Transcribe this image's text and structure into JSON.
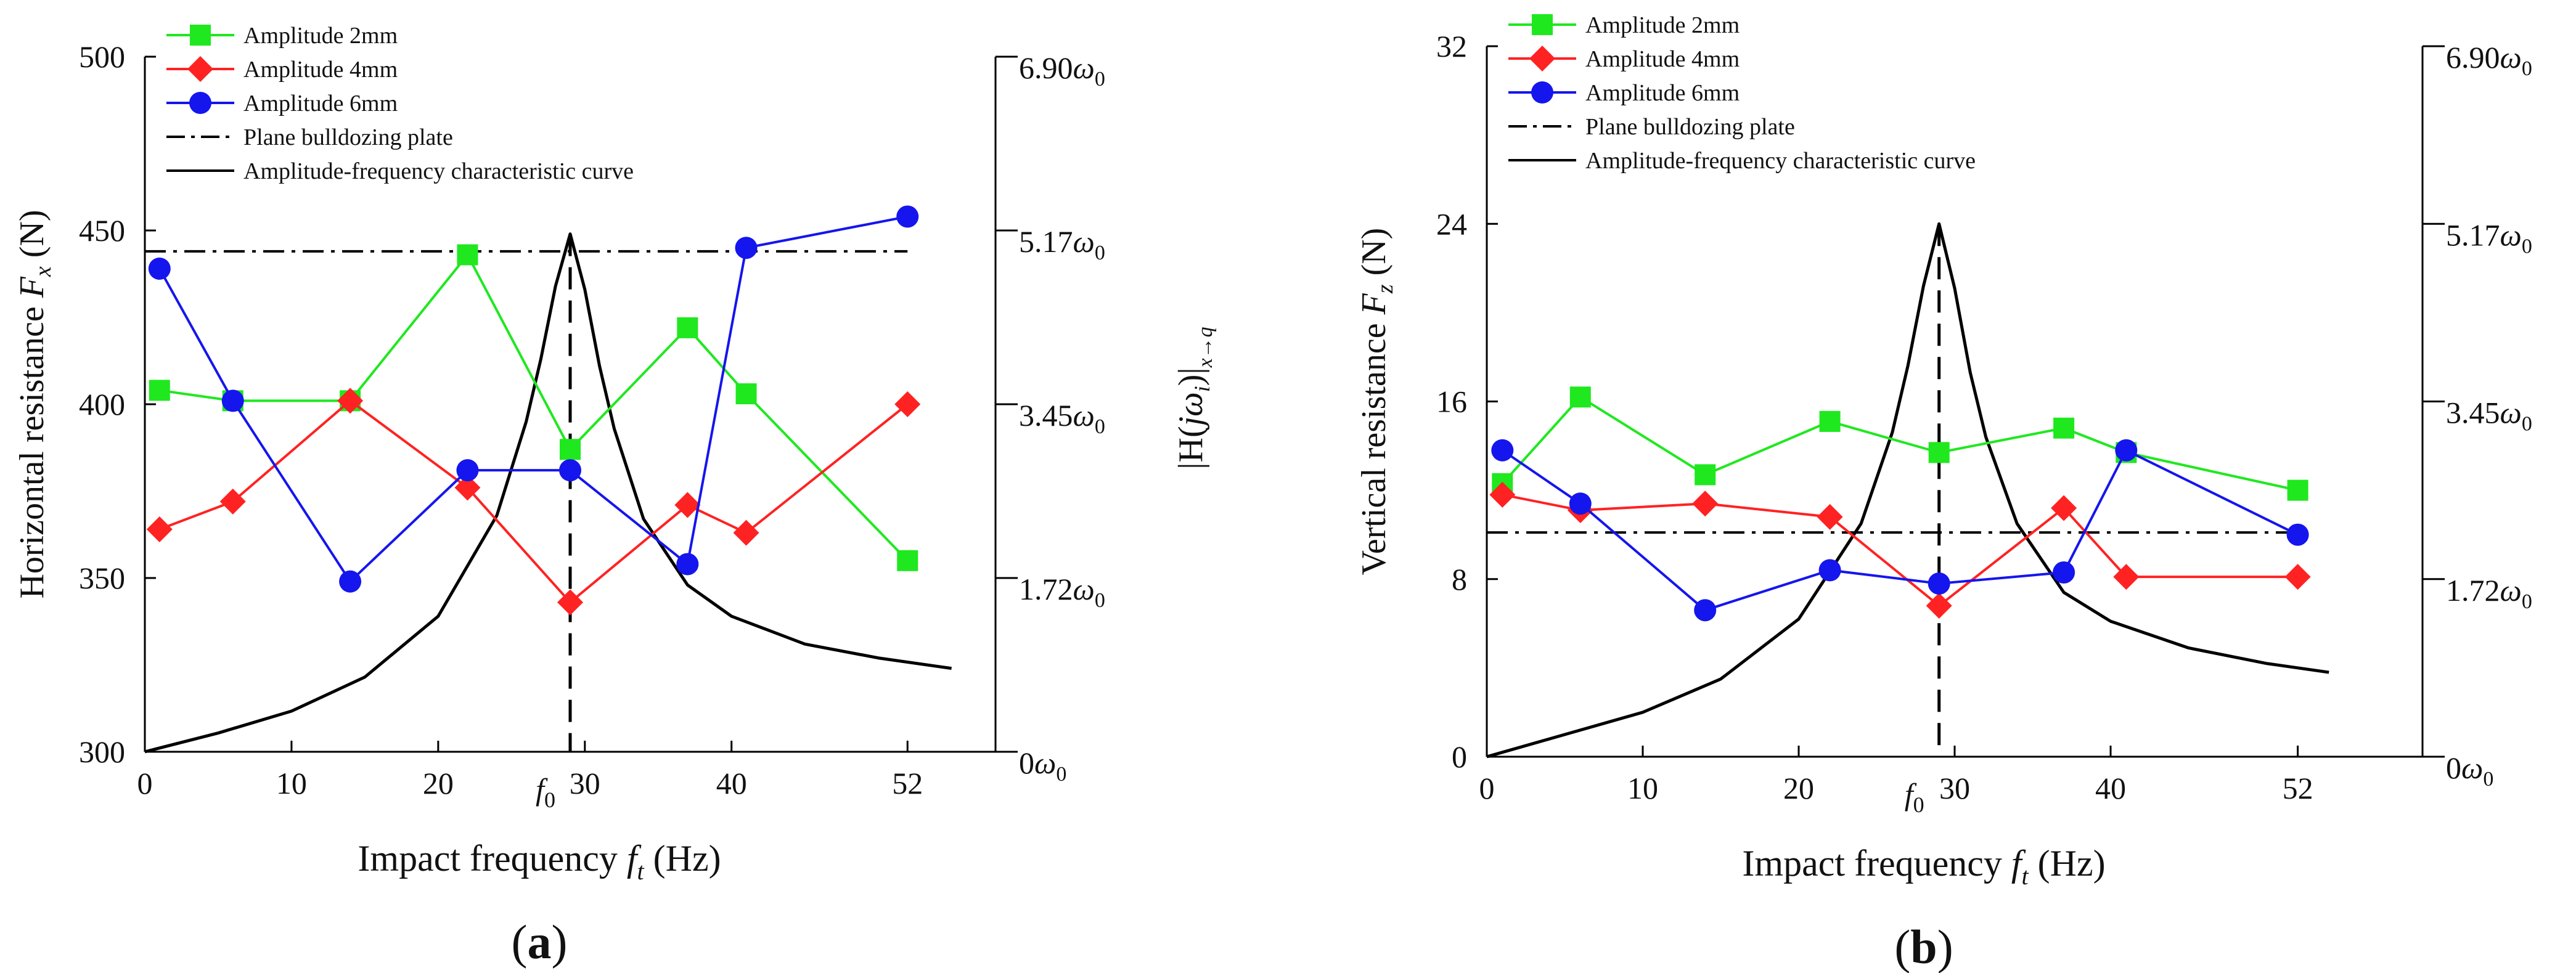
{
  "chart_data": [
    {
      "type": "line",
      "panel_label_open": "(",
      "panel_letter": "a",
      "panel_label_close": ")",
      "xlabel": "Impact frequency",
      "xlabel_symbol": "f",
      "xlabel_sub": "t",
      "xlabel_unit": "(Hz)",
      "ylabel": "Horizontal resistance",
      "ylabel_symbol": "F",
      "ylabel_sub": "x",
      "ylabel_unit": "(N)",
      "y2label": "|H(jω_i)|_{x→q}",
      "xlim": [
        0,
        58
      ],
      "ylim": [
        300,
        500
      ],
      "x_ticks": [
        0,
        10,
        20,
        30,
        40,
        52
      ],
      "y_ticks": [
        300,
        350,
        400,
        450,
        500
      ],
      "y2_ticks": [
        "0ω0",
        "1.72ω0",
        "3.45ω0",
        "5.17ω0",
        "6.90ω0"
      ],
      "f0_label": "f0",
      "f0_value": 29,
      "series": [
        {
          "name": "Amplitude 2mm",
          "color": "#1fe81f",
          "marker": "square",
          "x": [
            1,
            6,
            14,
            22,
            29,
            37,
            41,
            52
          ],
          "values": [
            404,
            401,
            401,
            443,
            387,
            422,
            403,
            355
          ]
        },
        {
          "name": "Amplitude 4mm",
          "color": "#ff2222",
          "marker": "diamond",
          "x": [
            1,
            6,
            14,
            22,
            29,
            37,
            41,
            52
          ],
          "values": [
            364,
            372,
            401,
            376,
            343,
            371,
            363,
            400
          ]
        },
        {
          "name": "Amplitude 6mm",
          "color": "#1515ee",
          "marker": "circle",
          "x": [
            1,
            6,
            14,
            22,
            29,
            37,
            41,
            52
          ],
          "values": [
            439,
            401,
            349,
            381,
            381,
            354,
            445,
            454
          ]
        }
      ],
      "baseline": {
        "name": "Plane bulldozing plate",
        "value": 444,
        "x_range": [
          0,
          52
        ]
      },
      "curve": {
        "name": "Amplitude-frequency characteristic curve",
        "x_end": 55,
        "x": [
          0,
          5,
          10,
          15,
          20,
          24,
          26,
          27,
          28,
          29,
          30,
          31,
          32,
          34,
          37,
          40,
          45,
          50,
          55
        ],
        "values": [
          300,
          305.4,
          311.7,
          321.5,
          339,
          368,
          395,
          413,
          434,
          449,
          433,
          411,
          393,
          367,
          348,
          339,
          331,
          327,
          324
        ]
      }
    },
    {
      "type": "line",
      "panel_label_open": "(",
      "panel_letter": "b",
      "panel_label_close": ")",
      "xlabel": "Impact frequency",
      "xlabel_symbol": "f",
      "xlabel_sub": "t",
      "xlabel_unit": "(Hz)",
      "ylabel": "Vertical resistance",
      "ylabel_symbol": "F",
      "ylabel_sub": "z",
      "ylabel_unit": "(N)",
      "xlim": [
        0,
        60
      ],
      "ylim": [
        0,
        32
      ],
      "x_ticks": [
        0,
        10,
        20,
        30,
        40,
        52
      ],
      "y_ticks": [
        0,
        8,
        16,
        24,
        32
      ],
      "y2_ticks": [
        "0ω0",
        "1.72ω0",
        "3.45ω0",
        "5.17ω0",
        "6.90ω0"
      ],
      "f0_label": "f0",
      "f0_value": 29,
      "series": [
        {
          "name": "Amplitude 2mm",
          "color": "#1fe81f",
          "marker": "square",
          "x": [
            1,
            6,
            14,
            22,
            29,
            37,
            41,
            52
          ],
          "values": [
            12.3,
            16.2,
            12.7,
            15.1,
            13.7,
            14.8,
            13.7,
            12.0
          ]
        },
        {
          "name": "Amplitude 4mm",
          "color": "#ff2222",
          "marker": "diamond",
          "x": [
            1,
            6,
            14,
            22,
            29,
            37,
            41,
            52
          ],
          "values": [
            11.8,
            11.1,
            11.4,
            10.8,
            6.8,
            11.2,
            8.1,
            8.1
          ]
        },
        {
          "name": "Amplitude 6mm",
          "color": "#1515ee",
          "marker": "circle",
          "x": [
            1,
            6,
            14,
            22,
            29,
            37,
            41,
            52
          ],
          "values": [
            13.8,
            11.4,
            6.6,
            8.4,
            7.8,
            8.3,
            13.8,
            10.0
          ]
        }
      ],
      "baseline": {
        "name": "Plane bulldozing plate",
        "value": 10.1,
        "x_range": [
          0,
          52
        ]
      },
      "curve": {
        "name": "Amplitude-frequency characteristic curve",
        "x_end": 54,
        "x": [
          0,
          5,
          10,
          15,
          20,
          24,
          26,
          27,
          28,
          29,
          30,
          31,
          32,
          34,
          37,
          40,
          45,
          50,
          54
        ],
        "values": [
          0,
          1.0,
          2.0,
          3.5,
          6.2,
          10.5,
          14.6,
          17.6,
          21.2,
          24.0,
          21.1,
          17.3,
          14.4,
          10.5,
          7.4,
          6.1,
          4.9,
          4.2,
          3.8
        ]
      }
    }
  ]
}
